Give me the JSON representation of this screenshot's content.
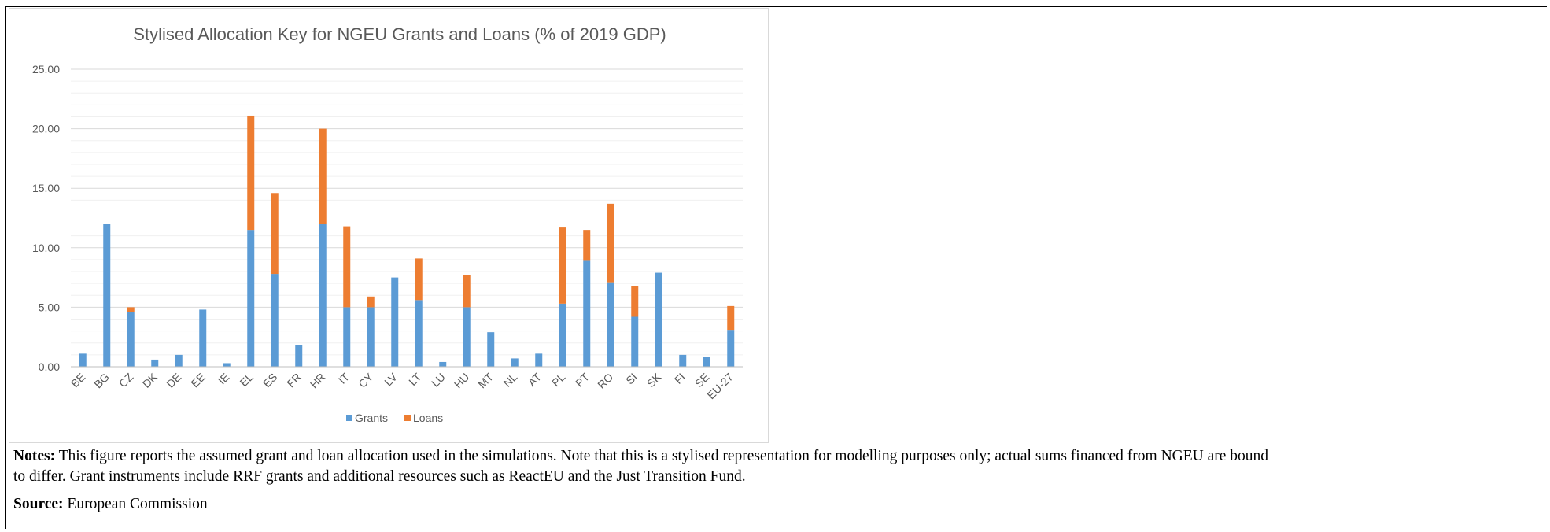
{
  "chart_data": {
    "type": "bar",
    "stacked": true,
    "title": "Stylised Allocation Key for NGEU Grants and Loans (% of 2019 GDP)",
    "xlabel": "",
    "ylabel": "",
    "ylim": [
      0,
      25
    ],
    "ytick_step": 5,
    "ytick_labels": [
      "0.00",
      "5.00",
      "10.00",
      "15.00",
      "20.00",
      "25.00"
    ],
    "grid": true,
    "legend_position": "bottom",
    "categories": [
      "BE",
      "BG",
      "CZ",
      "DK",
      "DE",
      "EE",
      "IE",
      "EL",
      "ES",
      "FR",
      "HR",
      "IT",
      "CY",
      "LV",
      "LT",
      "LU",
      "HU",
      "MT",
      "NL",
      "AT",
      "PL",
      "PT",
      "RO",
      "SI",
      "SK",
      "FI",
      "SE",
      "EU-27"
    ],
    "series": [
      {
        "name": "Grants",
        "color": "#5b9bd5",
        "values": [
          1.1,
          12.0,
          4.6,
          0.6,
          1.0,
          4.8,
          0.3,
          11.5,
          7.8,
          1.8,
          12.0,
          5.0,
          5.0,
          7.5,
          5.6,
          0.4,
          5.0,
          2.9,
          0.7,
          1.1,
          5.3,
          8.9,
          7.1,
          4.2,
          7.9,
          1.0,
          0.8,
          3.1
        ]
      },
      {
        "name": "Loans",
        "color": "#ed7d31",
        "values": [
          0,
          0,
          0.4,
          0,
          0,
          0,
          0,
          9.6,
          6.8,
          0,
          8.0,
          6.8,
          0.9,
          0,
          3.5,
          0,
          2.7,
          0,
          0,
          0,
          6.4,
          2.6,
          6.6,
          2.6,
          0,
          0,
          0,
          2.0
        ]
      }
    ]
  },
  "notes": {
    "label": "Notes:",
    "line1": "This figure reports the assumed grant and loan allocation used in the simulations. Note that this is a stylised representation for modelling purposes only; actual sums financed from NGEU are bound",
    "line2": "to differ. Grant instruments include RRF grants and additional resources such as ReactEU and the Just Transition Fund."
  },
  "source": {
    "label": "Source:",
    "text": "European Commission"
  }
}
